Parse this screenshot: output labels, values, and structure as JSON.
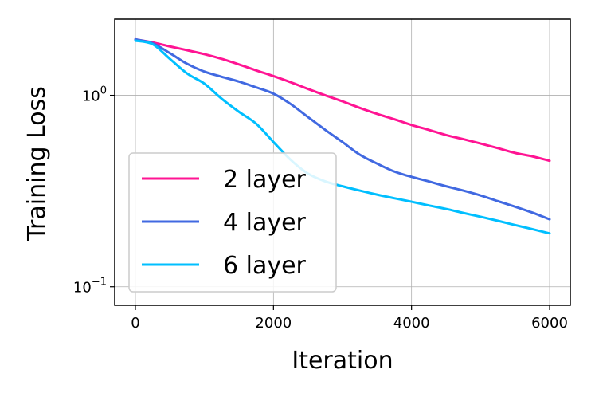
{
  "chart_data": {
    "type": "line",
    "xlabel": "Iteration",
    "ylabel": "Training Loss",
    "yscale": "log",
    "xlim": [
      -300,
      6300
    ],
    "ylim": [
      0.08,
      2.5
    ],
    "grid": true,
    "legend_position": "lower-left",
    "x_ticks": [
      {
        "value": 0,
        "label": "0"
      },
      {
        "value": 2000,
        "label": "2000"
      },
      {
        "value": 4000,
        "label": "4000"
      },
      {
        "value": 6000,
        "label": "6000"
      }
    ],
    "y_ticks": [
      {
        "value": 1,
        "label_base": "10",
        "label_exp": "0"
      },
      {
        "value": 0.1,
        "label_base": "10",
        "label_exp": "−1"
      }
    ],
    "series": [
      {
        "name": "2 layer",
        "color": "#ff1493",
        "x": [
          0,
          250,
          500,
          750,
          1000,
          1250,
          1500,
          1750,
          2000,
          2250,
          2500,
          2750,
          3000,
          3250,
          3500,
          3750,
          4000,
          4250,
          4500,
          4750,
          5000,
          5250,
          5500,
          5750,
          6000
        ],
        "y": [
          1.96,
          1.89,
          1.8,
          1.72,
          1.64,
          1.55,
          1.45,
          1.35,
          1.26,
          1.17,
          1.08,
          1.0,
          0.93,
          0.86,
          0.8,
          0.75,
          0.7,
          0.66,
          0.62,
          0.59,
          0.56,
          0.53,
          0.5,
          0.48,
          0.455
        ]
      },
      {
        "name": "4 layer",
        "color": "#4169e1",
        "x": [
          0,
          250,
          500,
          750,
          1000,
          1250,
          1500,
          1750,
          2000,
          2250,
          2500,
          2750,
          3000,
          3250,
          3500,
          3750,
          4000,
          4250,
          4500,
          4750,
          5000,
          5250,
          5500,
          5750,
          6000
        ],
        "y": [
          1.96,
          1.87,
          1.66,
          1.46,
          1.33,
          1.25,
          1.18,
          1.1,
          1.02,
          0.9,
          0.77,
          0.66,
          0.57,
          0.49,
          0.44,
          0.4,
          0.375,
          0.355,
          0.335,
          0.318,
          0.3,
          0.28,
          0.262,
          0.244,
          0.225
        ]
      },
      {
        "name": "6 layer",
        "color": "#00bfff",
        "x": [
          0,
          250,
          500,
          750,
          1000,
          1250,
          1500,
          1750,
          2000,
          2250,
          2500,
          2750,
          3000,
          3250,
          3500,
          3750,
          4000,
          4250,
          4500,
          4750,
          5000,
          5250,
          5500,
          5750,
          6000
        ],
        "y": [
          1.93,
          1.85,
          1.55,
          1.3,
          1.15,
          0.96,
          0.82,
          0.71,
          0.57,
          0.46,
          0.39,
          0.355,
          0.335,
          0.318,
          0.303,
          0.29,
          0.278,
          0.266,
          0.255,
          0.243,
          0.232,
          0.221,
          0.21,
          0.2,
          0.19
        ]
      }
    ]
  }
}
